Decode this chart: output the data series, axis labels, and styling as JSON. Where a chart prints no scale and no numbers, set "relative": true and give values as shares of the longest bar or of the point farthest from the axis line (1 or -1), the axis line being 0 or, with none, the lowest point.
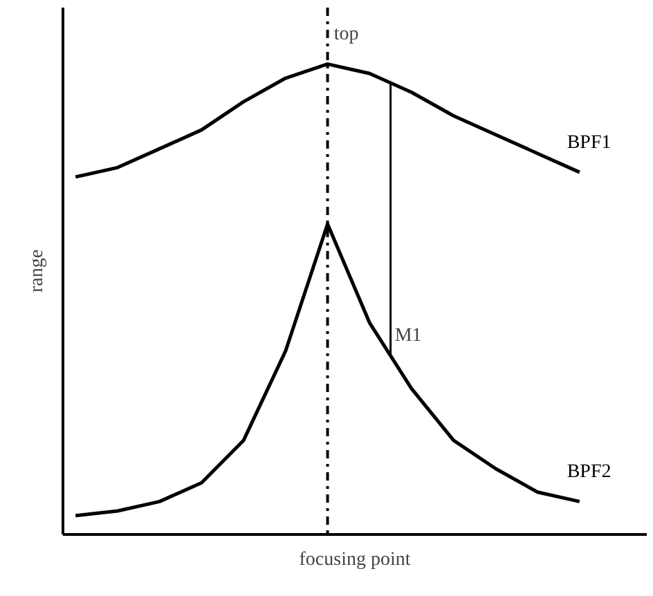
{
  "chart_data": {
    "type": "line",
    "relative": true,
    "xlabel": "focusing point",
    "ylabel": "range",
    "categories": [
      null,
      null,
      null,
      null,
      null,
      null,
      null,
      null,
      null,
      null,
      null,
      null,
      null
    ],
    "series": [
      {
        "name": "BPF1",
        "color": "#000000",
        "values": [
          0.76,
          0.78,
          0.82,
          0.86,
          0.92,
          0.97,
          1.0,
          0.98,
          0.94,
          0.89,
          0.85,
          0.81,
          0.77
        ]
      },
      {
        "name": "BPF2",
        "color": "#000000",
        "values": [
          0.04,
          0.05,
          0.07,
          0.11,
          0.2,
          0.39,
          0.66,
          0.45,
          0.31,
          0.2,
          0.14,
          0.09,
          0.07
        ]
      }
    ],
    "annotations": [
      "top",
      "M1"
    ],
    "marker": "none",
    "line_style": "solid"
  }
}
